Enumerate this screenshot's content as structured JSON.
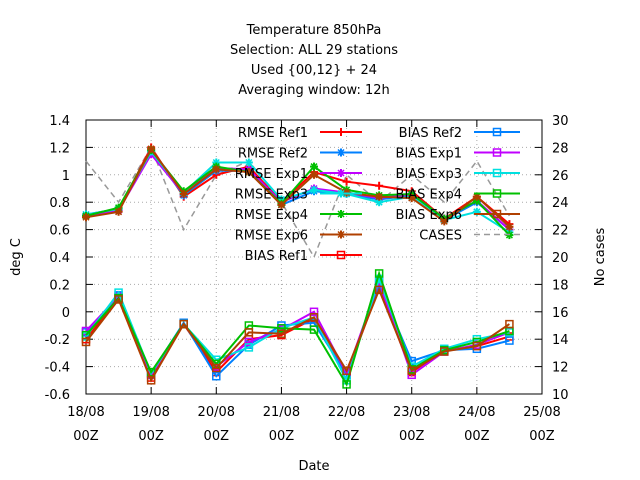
{
  "chart_data": {
    "type": "line",
    "title_lines": [
      "Temperature 850hPa",
      "Selection: ALL      29 stations",
      "Used {00,12} + 24",
      "Averaging window: 12h"
    ],
    "xlabel": "Date",
    "ylabel": "deg C",
    "y2label": "No cases",
    "ylim": [
      -0.6,
      1.4
    ],
    "y2lim": [
      10,
      30
    ],
    "y_ticks": [
      "-0.6",
      "-0.4",
      "-0.2",
      "0",
      "0.2",
      "0.4",
      "0.6",
      "0.8",
      "1",
      "1.2",
      "1.4"
    ],
    "y2_ticks": [
      "10",
      "12",
      "14",
      "16",
      "18",
      "20",
      "22",
      "24",
      "26",
      "28",
      "30"
    ],
    "x_ticks": [
      {
        "line1": "18/08",
        "line2": "00Z"
      },
      {
        "line1": "19/08",
        "line2": "00Z"
      },
      {
        "line1": "20/08",
        "line2": "00Z"
      },
      {
        "line1": "21/08",
        "line2": "00Z"
      },
      {
        "line1": "22/08",
        "line2": "00Z"
      },
      {
        "line1": "23/08",
        "line2": "00Z"
      },
      {
        "line1": "24/08",
        "line2": "00Z"
      },
      {
        "line1": "25/08",
        "line2": "00Z"
      }
    ],
    "x": [
      0,
      0.5,
      1,
      1.5,
      2,
      2.5,
      3,
      3.5,
      4,
      4.5,
      5,
      5.5,
      6,
      6.5
    ],
    "grid": true,
    "legend_position": "top-right",
    "series": [
      {
        "name": "RMSE Ref1",
        "color": "#ff0000",
        "marker": "plus",
        "values": [
          0.7,
          0.74,
          1.2,
          0.84,
          1.0,
          1.06,
          0.8,
          1.02,
          0.95,
          0.92,
          0.88,
          0.68,
          0.84,
          0.64
        ]
      },
      {
        "name": "RMSE Ref2",
        "color": "#0080ff",
        "marker": "star",
        "values": [
          0.71,
          0.75,
          1.17,
          0.85,
          1.03,
          1.03,
          0.78,
          0.88,
          0.86,
          0.82,
          0.85,
          0.67,
          0.8,
          0.6
        ]
      },
      {
        "name": "RMSE Exp1",
        "color": "#c000ff",
        "marker": "star",
        "values": [
          0.7,
          0.74,
          1.15,
          0.86,
          1.05,
          1.04,
          0.8,
          0.9,
          0.87,
          0.83,
          0.86,
          0.68,
          0.81,
          0.6
        ]
      },
      {
        "name": "RMSE Exp3",
        "color": "#00e0e0",
        "marker": "star",
        "values": [
          0.71,
          0.75,
          1.17,
          0.87,
          1.09,
          1.09,
          0.82,
          0.89,
          0.86,
          0.8,
          0.84,
          0.67,
          0.73,
          0.58
        ]
      },
      {
        "name": "RMSE Exp4",
        "color": "#00c000",
        "marker": "star",
        "values": [
          0.7,
          0.76,
          1.18,
          0.88,
          1.06,
          1.02,
          0.79,
          1.06,
          0.89,
          0.85,
          0.86,
          0.68,
          0.81,
          0.56
        ]
      },
      {
        "name": "RMSE Exp6",
        "color": "#b04000",
        "marker": "star",
        "values": [
          0.69,
          0.73,
          1.19,
          0.86,
          1.04,
          1.02,
          0.78,
          1.0,
          0.87,
          0.84,
          0.83,
          0.66,
          0.84,
          0.62
        ]
      },
      {
        "name": "BIAS Ref1",
        "color": "#ff0000",
        "marker": "square",
        "values": [
          -0.2,
          0.1,
          -0.48,
          -0.09,
          -0.44,
          -0.2,
          -0.17,
          -0.05,
          -0.46,
          0.18,
          -0.44,
          -0.28,
          -0.25,
          -0.18
        ]
      },
      {
        "name": "BIAS Ref2",
        "color": "#0080ff",
        "marker": "square",
        "values": [
          -0.15,
          0.12,
          -0.45,
          -0.08,
          -0.47,
          -0.24,
          -0.1,
          -0.08,
          -0.46,
          0.2,
          -0.36,
          -0.28,
          -0.27,
          -0.21
        ]
      },
      {
        "name": "BIAS Exp1",
        "color": "#c000ff",
        "marker": "square",
        "values": [
          -0.14,
          0.11,
          -0.46,
          -0.09,
          -0.4,
          -0.22,
          -0.13,
          0.0,
          -0.45,
          0.22,
          -0.46,
          -0.29,
          -0.24,
          -0.15
        ]
      },
      {
        "name": "BIAS Exp3",
        "color": "#00e0e0",
        "marker": "square",
        "values": [
          -0.18,
          0.14,
          -0.45,
          -0.09,
          -0.35,
          -0.26,
          -0.12,
          -0.04,
          -0.5,
          0.24,
          -0.4,
          -0.27,
          -0.2,
          -0.15
        ]
      },
      {
        "name": "BIAS Exp4",
        "color": "#00c000",
        "marker": "square",
        "values": [
          -0.17,
          0.1,
          -0.44,
          -0.09,
          -0.38,
          -0.1,
          -0.12,
          -0.13,
          -0.53,
          0.28,
          -0.42,
          -0.28,
          -0.22,
          -0.14
        ]
      },
      {
        "name": "BIAS Exp6",
        "color": "#b04000",
        "marker": "square",
        "values": [
          -0.22,
          0.09,
          -0.5,
          -0.09,
          -0.41,
          -0.15,
          -0.16,
          -0.04,
          -0.43,
          0.16,
          -0.43,
          -0.29,
          -0.25,
          -0.09
        ]
      },
      {
        "name": "CASES",
        "color": "#999999",
        "marker": "none",
        "dashed": true,
        "axis": "y2",
        "values": [
          27,
          24,
          28,
          22,
          26,
          27,
          24,
          20,
          26,
          24,
          26,
          24,
          27,
          23
        ]
      }
    ]
  }
}
